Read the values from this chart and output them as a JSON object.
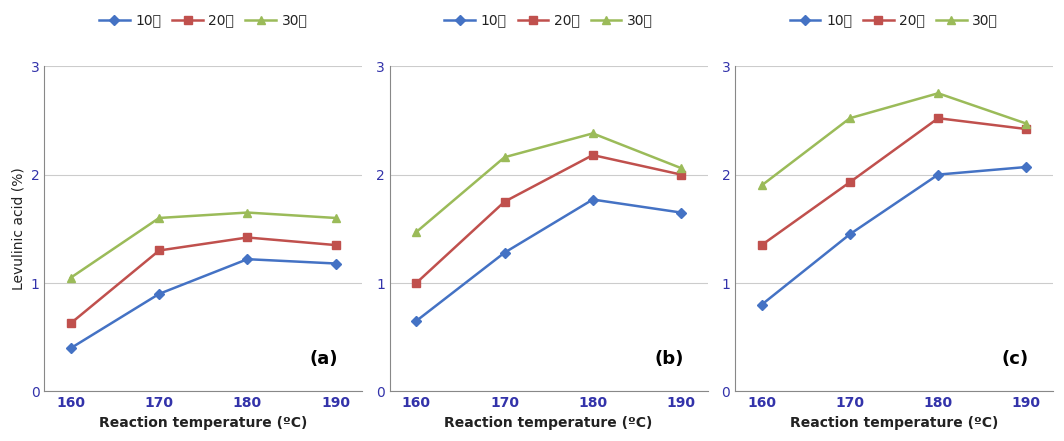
{
  "x": [
    160,
    170,
    180,
    190
  ],
  "subplots": [
    {
      "label": "(a)",
      "series": {
        "10min": [
          0.4,
          0.9,
          1.22,
          1.18
        ],
        "20min": [
          0.63,
          1.3,
          1.42,
          1.35
        ],
        "30min": [
          1.05,
          1.6,
          1.65,
          1.6
        ]
      }
    },
    {
      "label": "(b)",
      "series": {
        "10min": [
          0.65,
          1.28,
          1.77,
          1.65
        ],
        "20min": [
          1.0,
          1.75,
          2.18,
          2.0
        ],
        "30min": [
          1.47,
          2.16,
          2.38,
          2.06
        ]
      }
    },
    {
      "label": "(c)",
      "series": {
        "10min": [
          0.8,
          1.45,
          2.0,
          2.07
        ],
        "20min": [
          1.35,
          1.93,
          2.52,
          2.42
        ],
        "30min": [
          1.9,
          2.52,
          2.75,
          2.47
        ]
      }
    }
  ],
  "legend_labels": [
    "10분",
    "20분",
    "30분"
  ],
  "colors": {
    "10min": "#4472C4",
    "20min": "#C0504D",
    "30min": "#9BBB59"
  },
  "markers": {
    "10min": "D",
    "20min": "s",
    "30min": "^"
  },
  "ylabel": "Levulinic acid (%)",
  "xlabel": "Reaction temperature (ºC)",
  "ylim": [
    0,
    3
  ],
  "yticks": [
    0,
    1,
    2,
    3
  ],
  "xtick_color": "#3333AA",
  "ytick_color": "#3333AA",
  "xlabel_color": "#222222",
  "ylabel_color": "#222222",
  "background_color": "#ffffff",
  "grid_color": "#cccccc"
}
